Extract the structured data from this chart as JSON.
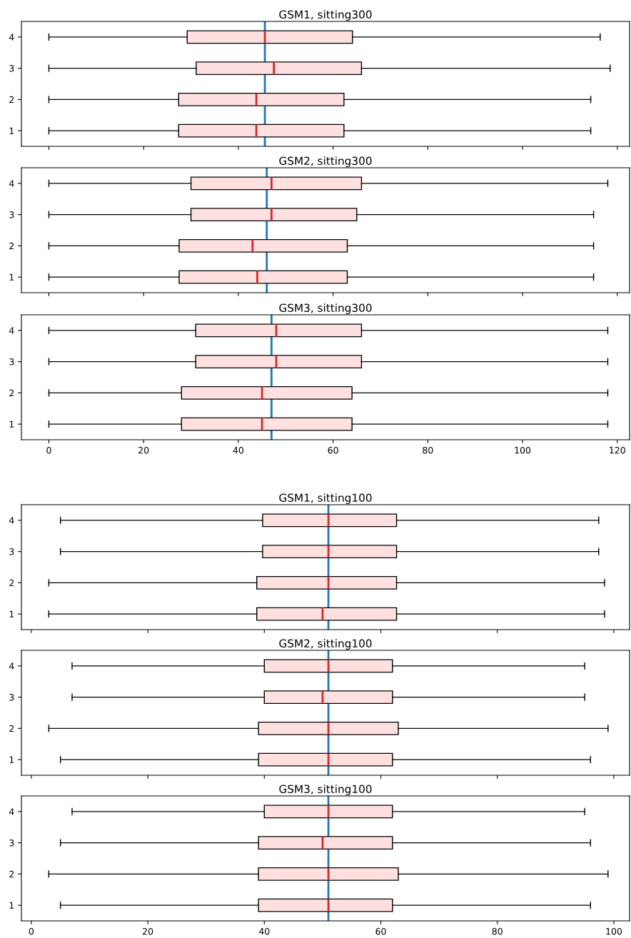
{
  "chart_data": [
    {
      "type": "box",
      "title": "GSM1, sitting300",
      "orientation": "horizontal",
      "categories": [
        "4",
        "3",
        "2",
        "1"
      ],
      "color": "#ffe0e0",
      "xlim": [
        -5.8,
        122.6
      ],
      "xticks": [
        {
          "value": 0,
          "label": null
        },
        {
          "value": 20,
          "label": null
        },
        {
          "value": 40,
          "label": null
        },
        {
          "value": 60,
          "label": null
        },
        {
          "value": 80,
          "label": null
        },
        {
          "value": 100,
          "label": null
        },
        {
          "value": 120,
          "label": null
        }
      ],
      "tick_labels": "y",
      "grid": false,
      "boxes": [
        {
          "low": 0,
          "q1": 29.2,
          "median": 45.6,
          "q3": 64.1,
          "high": 116.4
        },
        {
          "low": 0,
          "q1": 31.1,
          "median": 47.5,
          "q3": 66,
          "high": 118.5
        },
        {
          "low": 0,
          "q1": 27.4,
          "median": 43.8,
          "q3": 62.3,
          "high": 114.4
        },
        {
          "low": 0,
          "q1": 27.4,
          "median": 43.8,
          "q3": 62.3,
          "high": 114.4
        }
      ],
      "ref_lines": [
        {
          "axis": "x",
          "value": 45.6,
          "color": "#1f77b4"
        }
      ]
    },
    {
      "type": "box",
      "title": "GSM2, sitting300",
      "orientation": "horizontal",
      "categories": [
        "4",
        "3",
        "2",
        "1"
      ],
      "color": "#ffe0e0",
      "xlim": [
        -5.8,
        122.6
      ],
      "xticks": [
        {
          "value": 0,
          "label": null
        },
        {
          "value": 20,
          "label": null
        },
        {
          "value": 40,
          "label": null
        },
        {
          "value": 60,
          "label": null
        },
        {
          "value": 80,
          "label": null
        },
        {
          "value": 100,
          "label": null
        },
        {
          "value": 120,
          "label": null
        }
      ],
      "tick_labels": "y",
      "grid": false,
      "boxes": [
        {
          "low": 0,
          "q1": 30,
          "median": 47,
          "q3": 66,
          "high": 118
        },
        {
          "low": 0,
          "q1": 30,
          "median": 47,
          "q3": 65,
          "high": 115
        },
        {
          "low": 0,
          "q1": 27.5,
          "median": 43,
          "q3": 63,
          "high": 115
        },
        {
          "low": 0,
          "q1": 27.5,
          "median": 44,
          "q3": 63,
          "high": 115
        }
      ],
      "ref_lines": [
        {
          "axis": "x",
          "value": 46,
          "color": "#1f77b4"
        }
      ]
    },
    {
      "type": "box",
      "title": "GSM3, sitting300",
      "orientation": "horizontal",
      "categories": [
        "4",
        "3",
        "2",
        "1"
      ],
      "color": "#ffe0e0",
      "xlim": [
        -5.8,
        122.6
      ],
      "xticks": [
        0,
        20,
        40,
        60,
        80,
        100,
        120
      ],
      "grid": false,
      "boxes": [
        {
          "low": 0,
          "q1": 31,
          "median": 48,
          "q3": 66,
          "high": 118
        },
        {
          "low": 0,
          "q1": 31,
          "median": 48,
          "q3": 66,
          "high": 118
        },
        {
          "low": 0,
          "q1": 28,
          "median": 45,
          "q3": 64,
          "high": 118
        },
        {
          "low": 0,
          "q1": 28,
          "median": 45,
          "q3": 64,
          "high": 118
        }
      ],
      "ref_lines": [
        {
          "axis": "x",
          "value": 47,
          "color": "#1f77b4"
        }
      ]
    },
    {
      "type": "box",
      "title": "GSM1, sitting100",
      "orientation": "horizontal",
      "categories": [
        "4",
        "3",
        "2",
        "1"
      ],
      "color": "#ffe0e0",
      "xlim": [
        -1.7,
        102.7
      ],
      "xticks": [
        {
          "value": 0,
          "label": null
        },
        {
          "value": 20,
          "label": null
        },
        {
          "value": 40,
          "label": null
        },
        {
          "value": 60,
          "label": null
        },
        {
          "value": 80,
          "label": null
        },
        {
          "value": 100,
          "label": null
        }
      ],
      "tick_labels": "y",
      "grid": false,
      "boxes": [
        {
          "low": 5,
          "q1": 39.7,
          "median": 51,
          "q3": 62.7,
          "high": 97.4
        },
        {
          "low": 5,
          "q1": 39.7,
          "median": 51,
          "q3": 62.7,
          "high": 97.4
        },
        {
          "low": 3,
          "q1": 38.7,
          "median": 51,
          "q3": 62.7,
          "high": 98.4
        },
        {
          "low": 3,
          "q1": 38.7,
          "median": 50,
          "q3": 62.7,
          "high": 98.4
        }
      ],
      "ref_lines": [
        {
          "axis": "x",
          "value": 51,
          "color": "#1f77b4"
        }
      ]
    },
    {
      "type": "box",
      "title": "GSM2, sitting100",
      "orientation": "horizontal",
      "categories": [
        "4",
        "3",
        "2",
        "1"
      ],
      "color": "#ffe0e0",
      "xlim": [
        -1.7,
        102.7
      ],
      "xticks": [
        {
          "value": 0,
          "label": null
        },
        {
          "value": 20,
          "label": null
        },
        {
          "value": 40,
          "label": null
        },
        {
          "value": 60,
          "label": null
        },
        {
          "value": 80,
          "label": null
        },
        {
          "value": 100,
          "label": null
        }
      ],
      "tick_labels": "y",
      "grid": false,
      "boxes": [
        {
          "low": 7,
          "q1": 40,
          "median": 51,
          "q3": 62,
          "high": 95
        },
        {
          "low": 7,
          "q1": 40,
          "median": 50,
          "q3": 62,
          "high": 95
        },
        {
          "low": 3,
          "q1": 39,
          "median": 51,
          "q3": 63,
          "high": 99
        },
        {
          "low": 5,
          "q1": 39,
          "median": 51,
          "q3": 62,
          "high": 96
        }
      ],
      "ref_lines": [
        {
          "axis": "x",
          "value": 51,
          "color": "#1f77b4"
        }
      ]
    },
    {
      "type": "box",
      "title": "GSM3, sitting100",
      "orientation": "horizontal",
      "categories": [
        "4",
        "3",
        "2",
        "1"
      ],
      "color": "#ffe0e0",
      "xlim": [
        -1.7,
        102.7
      ],
      "xticks": [
        0,
        20,
        40,
        60,
        80,
        100
      ],
      "grid": false,
      "boxes": [
        {
          "low": 7,
          "q1": 40,
          "median": 51,
          "q3": 62,
          "high": 95
        },
        {
          "low": 5,
          "q1": 39,
          "median": 50,
          "q3": 62,
          "high": 96
        },
        {
          "low": 3,
          "q1": 39,
          "median": 51,
          "q3": 63,
          "high": 99
        },
        {
          "low": 5,
          "q1": 39,
          "median": 51,
          "q3": 62,
          "high": 96
        }
      ],
      "ref_lines": [
        {
          "axis": "x",
          "value": 51,
          "color": "#1f77b4"
        }
      ]
    }
  ]
}
